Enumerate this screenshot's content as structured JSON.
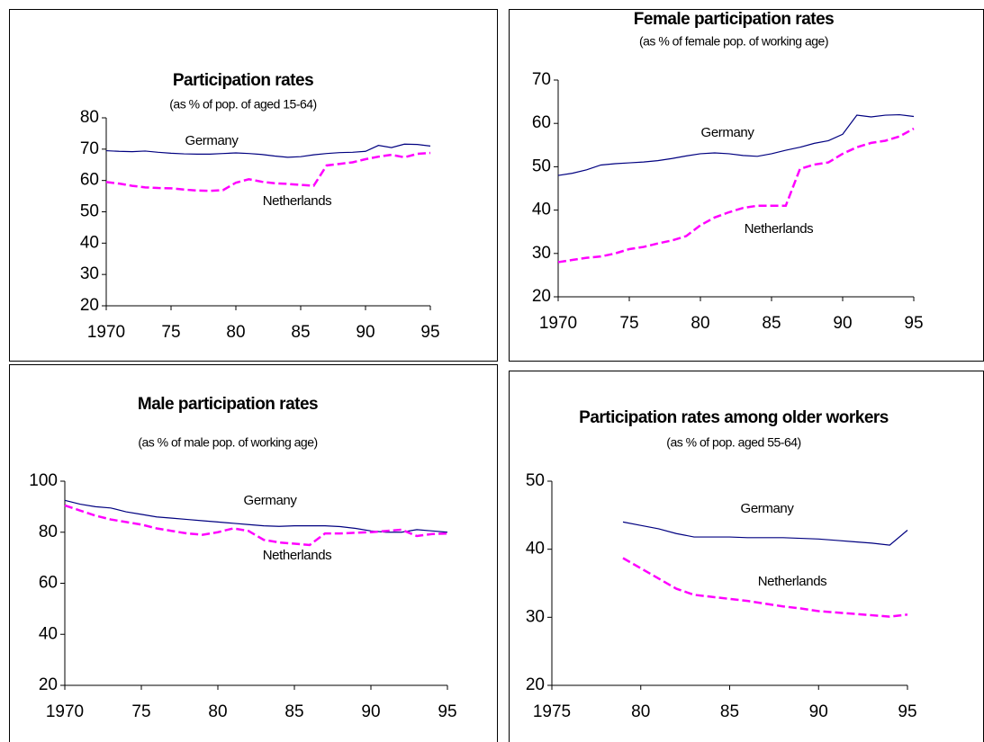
{
  "chart_data": [
    {
      "type": "line",
      "title": "Participation rates",
      "subtitle": "(as % of pop. of aged 15-64)",
      "x": [
        1970,
        1971,
        1972,
        1973,
        1974,
        1975,
        1976,
        1977,
        1978,
        1979,
        1980,
        1981,
        1982,
        1983,
        1984,
        1985,
        1986,
        1987,
        1988,
        1989,
        1990,
        1991,
        1992,
        1993,
        1994,
        1995
      ],
      "xlim": [
        1970,
        1995
      ],
      "xticks": [
        1970,
        {
          "value": 1975,
          "label": "75"
        },
        {
          "value": 1980,
          "label": "80"
        },
        {
          "value": 1985,
          "label": "85"
        },
        {
          "value": 1990,
          "label": "90"
        },
        {
          "value": 1995,
          "label": "95"
        }
      ],
      "ylim": [
        20,
        80
      ],
      "yticks": [
        20,
        30,
        40,
        50,
        60,
        70,
        80
      ],
      "series": [
        {
          "name": "Germany",
          "color": "#000080",
          "line_style": "solid",
          "values": [
            69.5,
            69.3,
            69.2,
            69.4,
            69,
            68.7,
            68.5,
            68.4,
            68.4,
            68.6,
            68.8,
            68.6,
            68.3,
            67.8,
            67.4,
            67.6,
            68.2,
            68.6,
            68.9,
            69,
            69.3,
            71.2,
            70.5,
            71.6,
            71.5,
            71
          ]
        },
        {
          "name": "Netherlands",
          "color": "#ff00ff",
          "line_style": "dashed",
          "values": [
            59.5,
            59,
            58.3,
            57.8,
            57.6,
            57.5,
            57.1,
            56.8,
            56.7,
            56.9,
            59.3,
            60.4,
            59.6,
            59.1,
            58.9,
            58.6,
            58.3,
            64.8,
            65.3,
            65.8,
            66.8,
            67.6,
            68.2,
            67.4,
            68.5,
            68.8
          ]
        }
      ]
    },
    {
      "type": "line",
      "title": "Female participation rates",
      "subtitle": "(as % of female pop. of working age)",
      "x": [
        1970,
        1971,
        1972,
        1973,
        1974,
        1975,
        1976,
        1977,
        1978,
        1979,
        1980,
        1981,
        1982,
        1983,
        1984,
        1985,
        1986,
        1987,
        1988,
        1989,
        1990,
        1991,
        1992,
        1993,
        1994,
        1995
      ],
      "xlim": [
        1970,
        1995
      ],
      "xticks": [
        1970,
        {
          "value": 1975,
          "label": "75"
        },
        {
          "value": 1980,
          "label": "80"
        },
        {
          "value": 1985,
          "label": "85"
        },
        {
          "value": 1990,
          "label": "90"
        },
        {
          "value": 1995,
          "label": "95"
        }
      ],
      "ylim": [
        20,
        70
      ],
      "yticks": [
        20,
        30,
        40,
        50,
        60,
        70
      ],
      "series": [
        {
          "name": "Germany",
          "color": "#000080",
          "line_style": "solid",
          "values": [
            48,
            48.5,
            49.3,
            50.4,
            50.7,
            50.9,
            51.1,
            51.4,
            51.9,
            52.5,
            53,
            53.2,
            53,
            52.6,
            52.4,
            53,
            53.8,
            54.5,
            55.4,
            56,
            57.5,
            61.9,
            61.5,
            61.9,
            62,
            61.6
          ]
        },
        {
          "name": "Netherlands",
          "color": "#ff00ff",
          "line_style": "dashed",
          "values": [
            28,
            28.5,
            29,
            29.3,
            30,
            31,
            31.5,
            32.3,
            33,
            34,
            36.5,
            38.3,
            39.5,
            40.5,
            41,
            41,
            41,
            49.5,
            50.5,
            51,
            53,
            54.5,
            55.5,
            56,
            57,
            58.8
          ]
        }
      ]
    },
    {
      "type": "line",
      "title": "Male participation rates",
      "subtitle": "(as % of male pop. of working age)",
      "x": [
        1970,
        1971,
        1972,
        1973,
        1974,
        1975,
        1976,
        1977,
        1978,
        1979,
        1980,
        1981,
        1982,
        1983,
        1984,
        1985,
        1986,
        1987,
        1988,
        1989,
        1990,
        1991,
        1992,
        1993,
        1994,
        1995
      ],
      "xlim": [
        1970,
        1995
      ],
      "xticks": [
        1970,
        {
          "value": 1975,
          "label": "75"
        },
        {
          "value": 1980,
          "label": "80"
        },
        {
          "value": 1985,
          "label": "85"
        },
        {
          "value": 1990,
          "label": "90"
        },
        {
          "value": 1995,
          "label": "95"
        }
      ],
      "ylim": [
        20,
        100
      ],
      "yticks": [
        20,
        40,
        60,
        80,
        100
      ],
      "series": [
        {
          "name": "Germany",
          "color": "#000080",
          "line_style": "solid",
          "values": [
            92.5,
            91,
            90,
            89.5,
            88,
            87,
            86,
            85.5,
            85,
            84.5,
            84,
            83.5,
            83,
            82.5,
            82.3,
            82.5,
            82.5,
            82.5,
            82.2,
            81.5,
            80.5,
            80,
            80,
            81,
            80.5,
            80
          ]
        },
        {
          "name": "Netherlands",
          "color": "#ff00ff",
          "line_style": "dashed",
          "values": [
            90.5,
            88.5,
            86.5,
            85,
            84,
            83,
            81.5,
            80.5,
            79.5,
            79,
            80,
            81.5,
            80.5,
            77,
            76,
            75.5,
            75,
            79.5,
            79.5,
            79.8,
            80,
            80.5,
            81,
            78.5,
            79.3,
            79.5
          ]
        }
      ]
    },
    {
      "type": "line",
      "title": "Participation rates among older workers",
      "subtitle": "(as % of pop. aged 55-64)",
      "x": [
        1979,
        1980,
        1981,
        1982,
        1983,
        1984,
        1985,
        1986,
        1987,
        1988,
        1989,
        1990,
        1991,
        1992,
        1993,
        1994,
        1995
      ],
      "xlim": [
        1975,
        1995
      ],
      "xticks": [
        1975,
        {
          "value": 1980,
          "label": "80"
        },
        {
          "value": 1985,
          "label": "85"
        },
        {
          "value": 1990,
          "label": "90"
        },
        {
          "value": 1995,
          "label": "95"
        }
      ],
      "ylim": [
        20,
        50
      ],
      "yticks": [
        20,
        30,
        40,
        50
      ],
      "series": [
        {
          "name": "Germany",
          "color": "#000080",
          "line_style": "solid",
          "values": [
            44,
            43.5,
            43,
            42.3,
            41.8,
            41.8,
            41.8,
            41.7,
            41.7,
            41.7,
            41.6,
            41.5,
            41.3,
            41.1,
            40.9,
            40.6,
            42.8
          ]
        },
        {
          "name": "Netherlands",
          "color": "#ff00ff",
          "line_style": "dashed",
          "values": [
            38.7,
            37.2,
            35.7,
            34.2,
            33.3,
            33,
            32.7,
            32.4,
            32,
            31.6,
            31.3,
            30.9,
            30.7,
            30.5,
            30.3,
            30.1,
            30.4
          ]
        }
      ]
    }
  ]
}
